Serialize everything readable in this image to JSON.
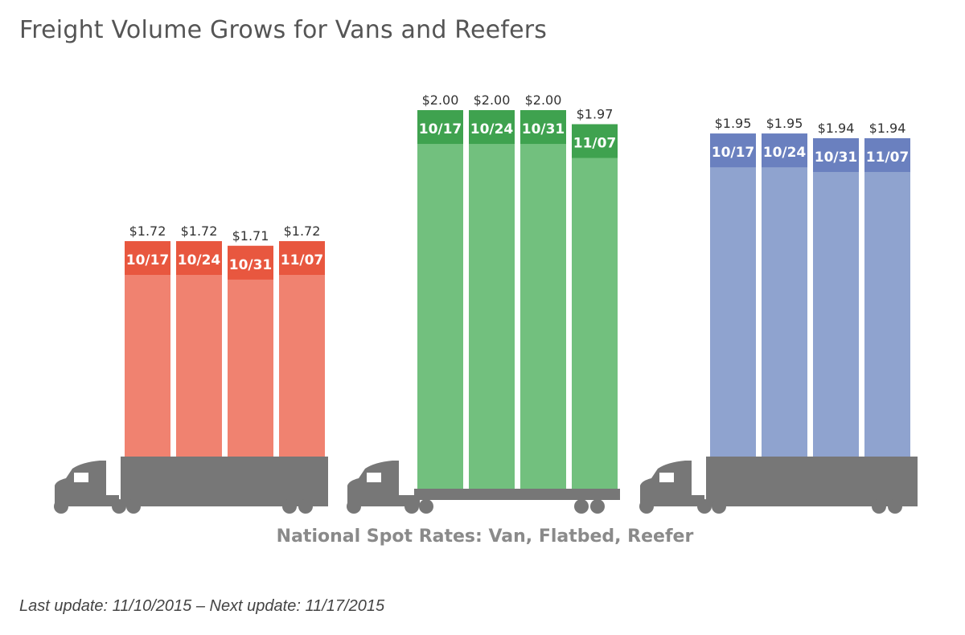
{
  "title": "Freight Volume Grows for Vans and Reefers",
  "caption": "National Spot Rates: Van, Flatbed, Reefer",
  "footer": "Last update: 11/10/2015 – Next update: 11/17/2015",
  "chart_data": {
    "type": "bar",
    "categories": [
      "10/17",
      "10/24",
      "10/31",
      "11/07"
    ],
    "series": [
      {
        "truck": "van",
        "color": "#f08270",
        "header_color": "#e8573f",
        "values": [
          1.72,
          1.72,
          1.71,
          1.72
        ],
        "labels": [
          "$1.72",
          "$1.72",
          "$1.71",
          "$1.72"
        ]
      },
      {
        "truck": "flatbed",
        "color": "#72c07e",
        "header_color": "#3fa24f",
        "values": [
          2.0,
          2.0,
          2.0,
          1.97
        ],
        "labels": [
          "$2.00",
          "$2.00",
          "$2.00",
          "$1.97"
        ]
      },
      {
        "truck": "reefer",
        "color": "#8fa3cf",
        "header_color": "#6a80bf",
        "values": [
          1.95,
          1.95,
          1.94,
          1.94
        ],
        "labels": [
          "$1.95",
          "$1.95",
          "$1.94",
          "$1.94"
        ]
      }
    ],
    "truck_color": "#777777"
  }
}
